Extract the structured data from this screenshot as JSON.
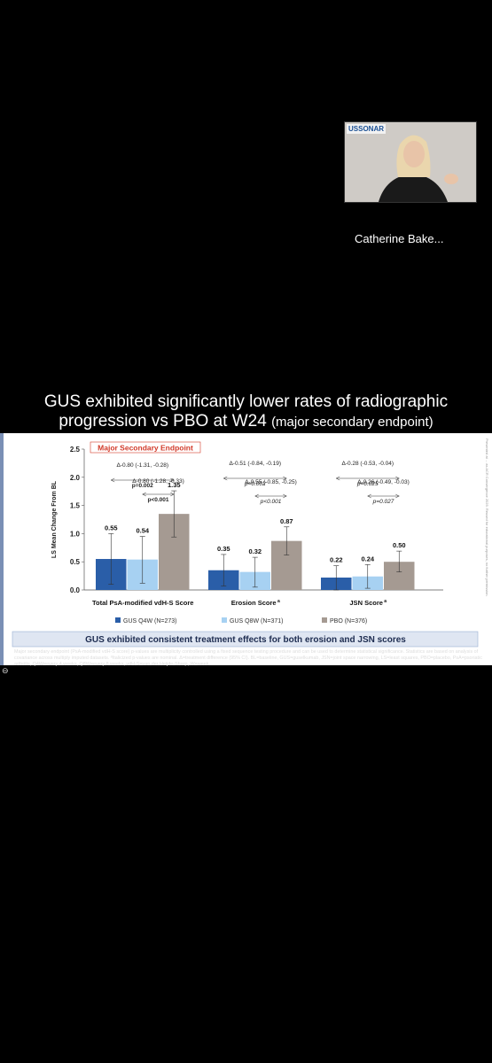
{
  "video": {
    "logo_text": "USSONAR",
    "presenter_name": "Catherine Bake..."
  },
  "slide": {
    "title_line1": "GUS exhibited significantly lower rates of radiographic",
    "title_line2_main": "progression vs PBO at W24",
    "title_line2_paren": "(major secondary endpoint)",
    "badge": "Major Secondary Endpoint",
    "banner": "GUS exhibited consistent treatment effects for both erosion and JSN scores",
    "side_text": "Presented at ... as ACR Convergence 2025. Reused for educational purposes, no further permission."
  },
  "chart_data": {
    "type": "bar",
    "ylabel": "LS Mean Change From BL",
    "ylim": [
      0,
      2.5
    ],
    "yticks": [
      "0.0",
      "0.5",
      "1.0",
      "1.5",
      "2.0",
      "2.5"
    ],
    "categories": [
      "Total PsA-modified vdH-S Score",
      "Erosion Score",
      "JSN Score"
    ],
    "category_superscripts": [
      "",
      "a",
      "a"
    ],
    "series": [
      {
        "name": "GUS Q4W (N=273)",
        "color": "#2a5ea8",
        "values": [
          0.55,
          0.35,
          0.22
        ],
        "labels": [
          "0.55",
          "0.35",
          "0.22"
        ],
        "err": [
          [
            0.1,
            1.0
          ],
          [
            0.07,
            0.63
          ],
          [
            0.0,
            0.43
          ]
        ]
      },
      {
        "name": "GUS Q8W (N=371)",
        "color": "#a7d1f2",
        "values": [
          0.54,
          0.32,
          0.24
        ],
        "labels": [
          "0.54",
          "0.32",
          "0.24"
        ],
        "err": [
          [
            0.12,
            0.95
          ],
          [
            0.05,
            0.58
          ],
          [
            0.03,
            0.45
          ]
        ]
      },
      {
        "name": "PBO (N=376)",
        "color": "#a59a92",
        "values": [
          1.35,
          0.87,
          0.5
        ],
        "labels": [
          "1.35",
          "0.87",
          "0.50"
        ],
        "err": [
          [
            0.94,
            1.76
          ],
          [
            0.62,
            1.12
          ],
          [
            0.32,
            0.69
          ]
        ]
      }
    ],
    "comparisons": [
      {
        "group": 0,
        "from": 0,
        "to": 2,
        "delta": "Δ-0.80 (-1.31, -0.28)",
        "p": "p=0.002",
        "italic": false
      },
      {
        "group": 0,
        "from": 1,
        "to": 2,
        "delta": "Δ-0.80 (-1.28, -0.33)",
        "p": "p<0.001",
        "italic": false
      },
      {
        "group": 1,
        "from": 0,
        "to": 2,
        "delta": "Δ-0.51 (-0.84, -0.19)",
        "p": "p=0.002",
        "italic": true
      },
      {
        "group": 1,
        "from": 1,
        "to": 2,
        "delta": "Δ-0.55 (-0.85, -0.25)",
        "p": "p<0.001",
        "italic": true
      },
      {
        "group": 2,
        "from": 0,
        "to": 2,
        "delta": "Δ-0.28 (-0.53, -0.04)",
        "p": "p=0.025",
        "italic": true
      },
      {
        "group": 2,
        "from": 1,
        "to": 2,
        "delta": "Δ-0.26 (-0.49, -0.03)",
        "p": "p=0.027",
        "italic": true
      }
    ]
  },
  "footnote": "Major secondary endpoint (PsA-modified vdH-S score) p-values are multiplicity controlled using a fixed sequence testing procedure and can be used to determine statistical significance. Statistics are based on analysis of covariance across multiply imputed datasets. ªItalicized p-values are nominal. Δ=treatment difference (95% CI). BL=baseline, GUS=guselkumab, JSN=joint space narrowing, LS=least squares, PBO=placebo, PsA=psoriatic arthritis, Q4W=every 4 weeks, Q8W=every 8 weeks, vdH-S=van der Heijde-Sharp, W=week."
}
